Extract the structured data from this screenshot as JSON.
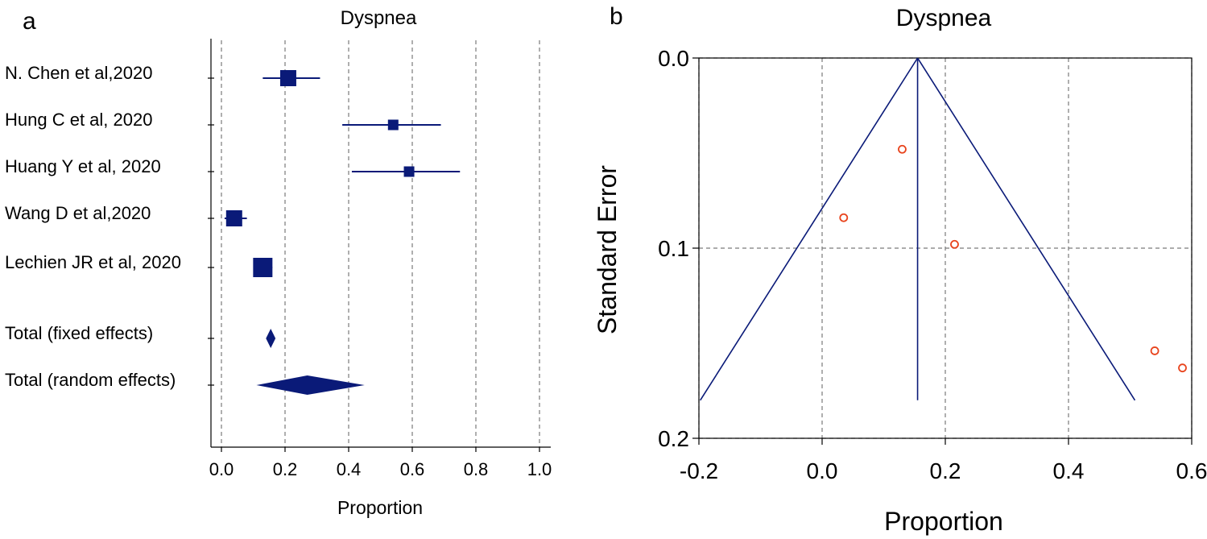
{
  "chart_data": [
    {
      "panel_label": "a",
      "type": "forest",
      "title": "Dyspnea",
      "xlabel": "Proportion",
      "xlim": [
        0.0,
        1.0
      ],
      "xticks": [
        "0.0",
        "0.2",
        "0.4",
        "0.6",
        "0.8",
        "1.0"
      ],
      "grid": true,
      "colors": {
        "marker": "#0a1a78"
      },
      "studies": [
        {
          "label": "N. Chen et al,2020",
          "estimate": 0.21,
          "ci": [
            0.13,
            0.31
          ],
          "weight": "medium"
        },
        {
          "label": "Hung C et al, 2020",
          "estimate": 0.54,
          "ci": [
            0.38,
            0.69
          ],
          "weight": "small"
        },
        {
          "label": "Huang Y et al, 2020",
          "estimate": 0.59,
          "ci": [
            0.41,
            0.75
          ],
          "weight": "small"
        },
        {
          "label": "Wang D et al,2020",
          "estimate": 0.04,
          "ci": [
            0.01,
            0.08
          ],
          "weight": "medium"
        },
        {
          "label": "Lechien JR et al, 2020",
          "estimate": 0.13,
          "ci": [
            0.1,
            0.16
          ],
          "weight": "large"
        }
      ],
      "totals": [
        {
          "label": "Total (fixed effects)",
          "estimate": 0.155,
          "ci": [
            0.14,
            0.17
          ]
        },
        {
          "label": "Total (random effects)",
          "estimate": 0.27,
          "ci": [
            0.11,
            0.45
          ]
        }
      ]
    },
    {
      "panel_label": "b",
      "type": "funnel",
      "title": "Dyspnea",
      "xlabel": "Proportion",
      "ylabel": "Standard Error",
      "xlim": [
        -0.2,
        0.6
      ],
      "ylim": [
        0.0,
        0.2
      ],
      "xticks": [
        "-0.2",
        "0.0",
        "0.2",
        "0.4",
        "0.6"
      ],
      "yticks": [
        "0.0",
        "0.1",
        "0.2"
      ],
      "grid": true,
      "pooled_estimate": 0.155,
      "colors": {
        "lines": "#0a1a78",
        "points": "#e8431c"
      },
      "points": [
        {
          "x": 0.13,
          "y": 0.048
        },
        {
          "x": 0.035,
          "y": 0.084
        },
        {
          "x": 0.215,
          "y": 0.098
        },
        {
          "x": 0.54,
          "y": 0.154
        },
        {
          "x": 0.585,
          "y": 0.163
        }
      ]
    }
  ]
}
